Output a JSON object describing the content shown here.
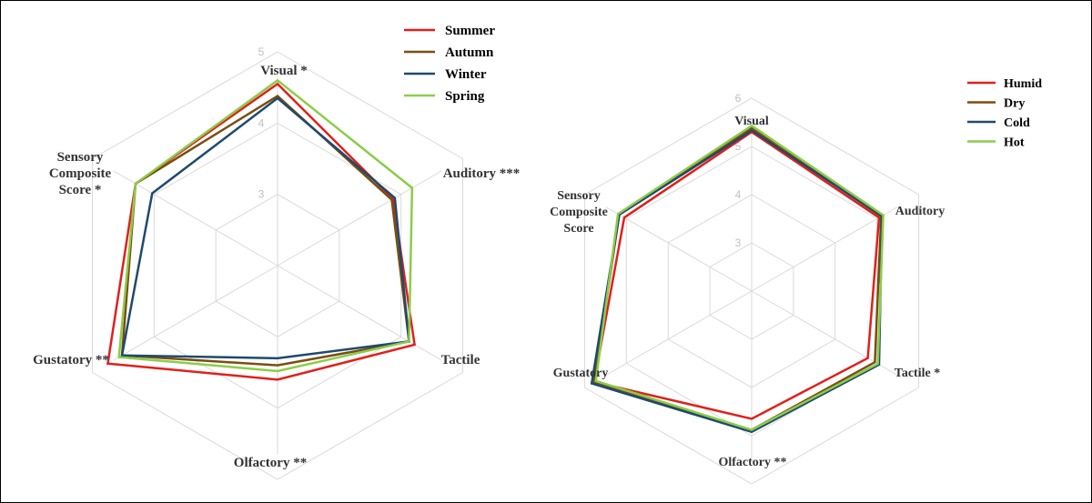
{
  "chart_data": [
    {
      "type": "radar",
      "axes": [
        "Visual *",
        "Auditory ***",
        "Tactile",
        "Olfactory **",
        "Gustatory **",
        "Sensory Composite Score *"
      ],
      "tick_labels": [
        "3",
        "4",
        "5"
      ],
      "range": [
        2,
        5
      ],
      "grid": true,
      "legend_position": "top",
      "series": [
        {
          "name": "Summer",
          "color": "#e0201c",
          "values": [
            4.55,
            3.87,
            4.22,
            3.6,
            4.75,
            4.3
          ]
        },
        {
          "name": "Autumn",
          "color": "#7a4e0f",
          "values": [
            4.38,
            3.85,
            4.13,
            3.4,
            4.52,
            4.3
          ]
        },
        {
          "name": "Winter",
          "color": "#1e4a6e",
          "values": [
            4.35,
            3.9,
            4.13,
            3.3,
            4.52,
            4.03
          ]
        },
        {
          "name": "Spring",
          "color": "#8ccc4a",
          "values": [
            4.6,
            4.18,
            4.13,
            3.48,
            4.57,
            4.3
          ]
        }
      ]
    },
    {
      "type": "radar",
      "axes": [
        "Visual",
        "Auditory",
        "Tactile *",
        "Olfactory **",
        "Gustatory",
        "Sensory Composite Score"
      ],
      "tick_labels": [
        "3",
        "4",
        "5",
        "6"
      ],
      "range": [
        2,
        6
      ],
      "grid": true,
      "legend_position": "top-right",
      "series": [
        {
          "name": "Humid",
          "color": "#e0201c",
          "values": [
            5.3,
            5.05,
            4.78,
            4.65,
            5.77,
            5.05
          ]
        },
        {
          "name": "Dry",
          "color": "#7a4e0f",
          "values": [
            5.38,
            5.1,
            4.95,
            4.88,
            5.77,
            5.17
          ]
        },
        {
          "name": "Cold",
          "color": "#1e4a6e",
          "values": [
            5.33,
            5.12,
            5.05,
            4.92,
            5.83,
            5.17
          ]
        },
        {
          "name": "Hot",
          "color": "#8ccc4a",
          "values": [
            5.43,
            5.15,
            5.02,
            4.88,
            5.73,
            5.2
          ]
        }
      ]
    }
  ]
}
